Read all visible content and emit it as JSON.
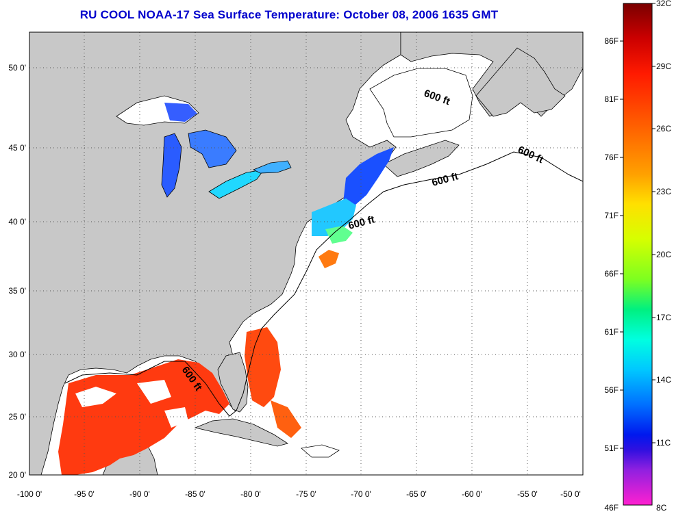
{
  "title": "RU COOL  NOAA-17  Sea Surface Temperature:  October 08, 2006 1635 GMT",
  "axes": {
    "lat_labels": [
      "50 0'",
      "45 0'",
      "40 0'",
      "35 0'",
      "30 0'",
      "25 0'",
      "20 0'"
    ],
    "lon_labels": [
      "-100 0'",
      "-95 0'",
      "-90 0'",
      "-85 0'",
      "-80 0'",
      "-75 0'",
      "-70 0'",
      "-65 0'",
      "-60 0'",
      "-55 0'",
      "-50 0'"
    ]
  },
  "contour_label": "600 ft",
  "colorbar": {
    "celsius_labels": [
      "32C",
      "29C",
      "26C",
      "23C",
      "20C",
      "17C",
      "14C",
      "11C",
      "8C"
    ],
    "fahrenheit_labels": [
      "86F",
      "81F",
      "76F",
      "71F",
      "66F",
      "61F",
      "56F",
      "51F",
      "46F"
    ]
  },
  "colors": {
    "land": "#c8c8c8",
    "ocean": "#ffffff",
    "title": "#0000cc",
    "grid": "#555555"
  }
}
